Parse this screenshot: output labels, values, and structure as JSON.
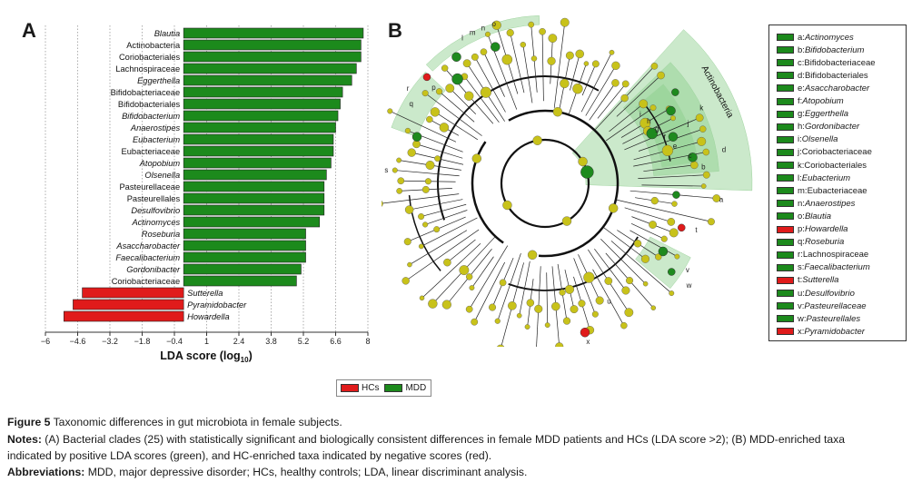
{
  "panel_a_label": "A",
  "panel_b_label": "B",
  "colors": {
    "mdd": "#1c8a1c",
    "hc": "#e01b1b",
    "node_yellow": "#c8c21a",
    "node_green": "#1e8a1e",
    "clade_bg": "#8ccf8c"
  },
  "chart_data": [
    {
      "type": "bar",
      "orientation": "horizontal",
      "title": "",
      "xlabel": "LDA score (log10)",
      "xlabel_main": "LDA score (log",
      "xlabel_sub": "10",
      "xlabel_close": ")",
      "xlim": [
        -6,
        8
      ],
      "xticks": [
        -6,
        -4.6,
        -3.2,
        -1.8,
        -0.4,
        1,
        2.4,
        3.8,
        5.2,
        6.6,
        8
      ],
      "tick_labels": [
        "−6",
        "−4.6",
        "−3.2",
        "−1.8",
        "−0.4",
        "1",
        "2.4",
        "3.8",
        "5.2",
        "6.6",
        "8"
      ],
      "categories": [
        "Blautia",
        "Actinobacteria",
        "Coriobacteriales",
        "Lachnospiraceae",
        "Eggerthella",
        "Bifidobacteriaceae",
        "Bifidobacteriales",
        "Bifidobacterium",
        "Anaerostipes",
        "Eubacterium",
        "Eubacteriaceae",
        "Atopobium",
        "Olsenella",
        "Pasteurellaceae",
        "Pasteurellales",
        "Desulfovibrio",
        "Actinomyces",
        "Roseburia",
        "Asaccharobacter",
        "Faecalibacterium",
        "Gordonibacter",
        "Coriobacteriaceae",
        "Sutterella",
        "Pyramidobacter",
        "Howardella"
      ],
      "italic": [
        true,
        false,
        false,
        false,
        true,
        false,
        false,
        true,
        true,
        true,
        false,
        true,
        true,
        false,
        false,
        true,
        true,
        true,
        true,
        true,
        true,
        false,
        true,
        true,
        true
      ],
      "values": [
        7.8,
        7.7,
        7.7,
        7.5,
        7.3,
        6.9,
        6.8,
        6.7,
        6.6,
        6.5,
        6.5,
        6.4,
        6.2,
        6.1,
        6.1,
        6.1,
        5.9,
        5.3,
        5.3,
        5.3,
        5.1,
        4.9,
        -4.4,
        -4.8,
        -5.2
      ],
      "groups": [
        "MDD",
        "MDD",
        "MDD",
        "MDD",
        "MDD",
        "MDD",
        "MDD",
        "MDD",
        "MDD",
        "MDD",
        "MDD",
        "MDD",
        "MDD",
        "MDD",
        "MDD",
        "MDD",
        "MDD",
        "MDD",
        "MDD",
        "MDD",
        "MDD",
        "MDD",
        "HC",
        "HC",
        "HC"
      ],
      "legend": [
        {
          "name": "HCs",
          "color": "#e01b1b"
        },
        {
          "name": "MDD",
          "color": "#1c8a1c"
        }
      ]
    },
    {
      "type": "cladogram",
      "clade_labels": [
        "a",
        "b",
        "c",
        "d",
        "e",
        "f",
        "g",
        "h",
        "i",
        "j",
        "k",
        "l",
        "m",
        "n",
        "o",
        "p",
        "q",
        "r",
        "s",
        "t",
        "u",
        "v",
        "w",
        "x"
      ],
      "phylum_label": "Actinobacteria",
      "legend": [
        {
          "key": "a: ",
          "name": "Actinomyces",
          "italic": true,
          "color": "#1c8a1c"
        },
        {
          "key": "b: ",
          "name": "Bifidobacterium",
          "italic": true,
          "color": "#1c8a1c"
        },
        {
          "key": "c: ",
          "name": "Bifidobacteriaceae",
          "italic": false,
          "color": "#1c8a1c"
        },
        {
          "key": "d: ",
          "name": "Bifidobacteriales",
          "italic": false,
          "color": "#1c8a1c"
        },
        {
          "key": "e: ",
          "name": "Asacchar­obacter",
          "italic": true,
          "color": "#1c8a1c"
        },
        {
          "key": "f: ",
          "name": "Atopobium",
          "italic": true,
          "color": "#1c8a1c"
        },
        {
          "key": "g: ",
          "name": "Eggerthella",
          "italic": true,
          "color": "#1c8a1c"
        },
        {
          "key": "h: ",
          "name": "Gordonibacter",
          "italic": true,
          "color": "#1c8a1c"
        },
        {
          "key": "i: ",
          "name": "Olsenella",
          "italic": true,
          "color": "#1c8a1c"
        },
        {
          "key": "j: ",
          "name": "Coriobacteriaceae",
          "italic": false,
          "color": "#1c8a1c"
        },
        {
          "key": "k: ",
          "name": "Coriobacteriales",
          "italic": false,
          "color": "#1c8a1c"
        },
        {
          "key": "l: ",
          "name": "Eubacterium",
          "italic": true,
          "color": "#1c8a1c"
        },
        {
          "key": "m:",
          "name": "Eubacteriaceae",
          "italic": false,
          "color": "#1c8a1c"
        },
        {
          "key": "n: ",
          "name": "Anaerostipes",
          "italic": true,
          "color": "#1c8a1c"
        },
        {
          "key": "o: ",
          "name": "Blautia",
          "italic": true,
          "color": "#1c8a1c"
        },
        {
          "key": "p: ",
          "name": "Howardella",
          "italic": true,
          "color": "#e01b1b"
        },
        {
          "key": "q: ",
          "name": "Roseburia",
          "italic": true,
          "color": "#1c8a1c"
        },
        {
          "key": "r: ",
          "name": "Lachnospiraceae",
          "italic": false,
          "color": "#1c8a1c"
        },
        {
          "key": "s: ",
          "name": "Faecalibacterium",
          "italic": true,
          "color": "#1c8a1c"
        },
        {
          "key": "t: ",
          "name": "Sutterella",
          "italic": true,
          "color": "#e01b1b"
        },
        {
          "key": "u: ",
          "name": "Desulfovibrio",
          "italic": true,
          "color": "#1c8a1c"
        },
        {
          "key": "v: ",
          "name": "Pasteurellaceae",
          "italic": true,
          "color": "#1c8a1c"
        },
        {
          "key": "w:",
          "name": "Pasteurellales",
          "italic": true,
          "color": "#1c8a1c"
        },
        {
          "key": "x: ",
          "name": "Pyramidobacter",
          "italic": true,
          "color": "#e01b1b"
        }
      ]
    }
  ],
  "bottom_legend": {
    "hc_label": "HCs",
    "mdd_label": "MDD"
  },
  "caption": {
    "figure_label": "Figure 5",
    "figure_title": " Taxonomic differences in gut microbiota in female subjects.",
    "notes_label": "Notes:",
    "notes_line1": " (A) Bacterial clades (25) with statistically significant and biologically consistent differences in female MDD patients and HCs (LDA score >2); (B) MDD-enriched taxa",
    "notes_line2": "indicated by positive LDA scores (green), and HC-enriched taxa indicated by negative scores (red).",
    "abbrev_label": "Abbreviations:",
    "abbrev_text": " MDD, major depressive disorder; HCs, healthy controls; LDA, linear discriminant analysis."
  }
}
